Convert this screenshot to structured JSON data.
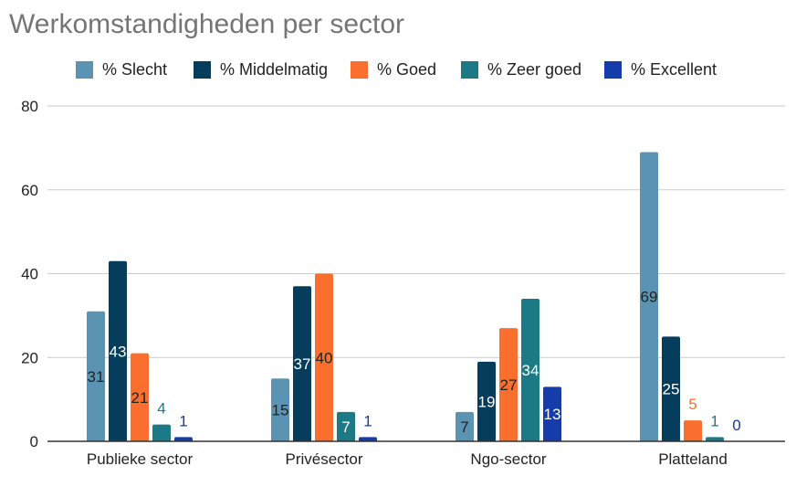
{
  "chart_data": {
    "type": "bar",
    "title": "Werkomstandigheden per sector",
    "categories": [
      "Publieke sector",
      "Privésector",
      "Ngo-sector",
      "Platteland"
    ],
    "series": [
      {
        "name": "% Slecht",
        "color": "#5b93b2",
        "values": [
          31,
          15,
          7,
          69
        ]
      },
      {
        "name": "% Middelmatig",
        "color": "#063d5c",
        "values": [
          43,
          37,
          19,
          25
        ]
      },
      {
        "name": "% Goed",
        "color": "#fb6f2e",
        "values": [
          21,
          40,
          27,
          5
        ]
      },
      {
        "name": "% Zeer goed",
        "color": "#1b7a85",
        "values": [
          4,
          7,
          34,
          1
        ]
      },
      {
        "name": "% Excellent",
        "color": "#163bab",
        "values": [
          1,
          1,
          13,
          0
        ]
      }
    ],
    "ylim": [
      0,
      80
    ],
    "yticks": [
      0,
      20,
      40,
      60,
      80
    ],
    "grid": true,
    "legend_position": "top"
  }
}
